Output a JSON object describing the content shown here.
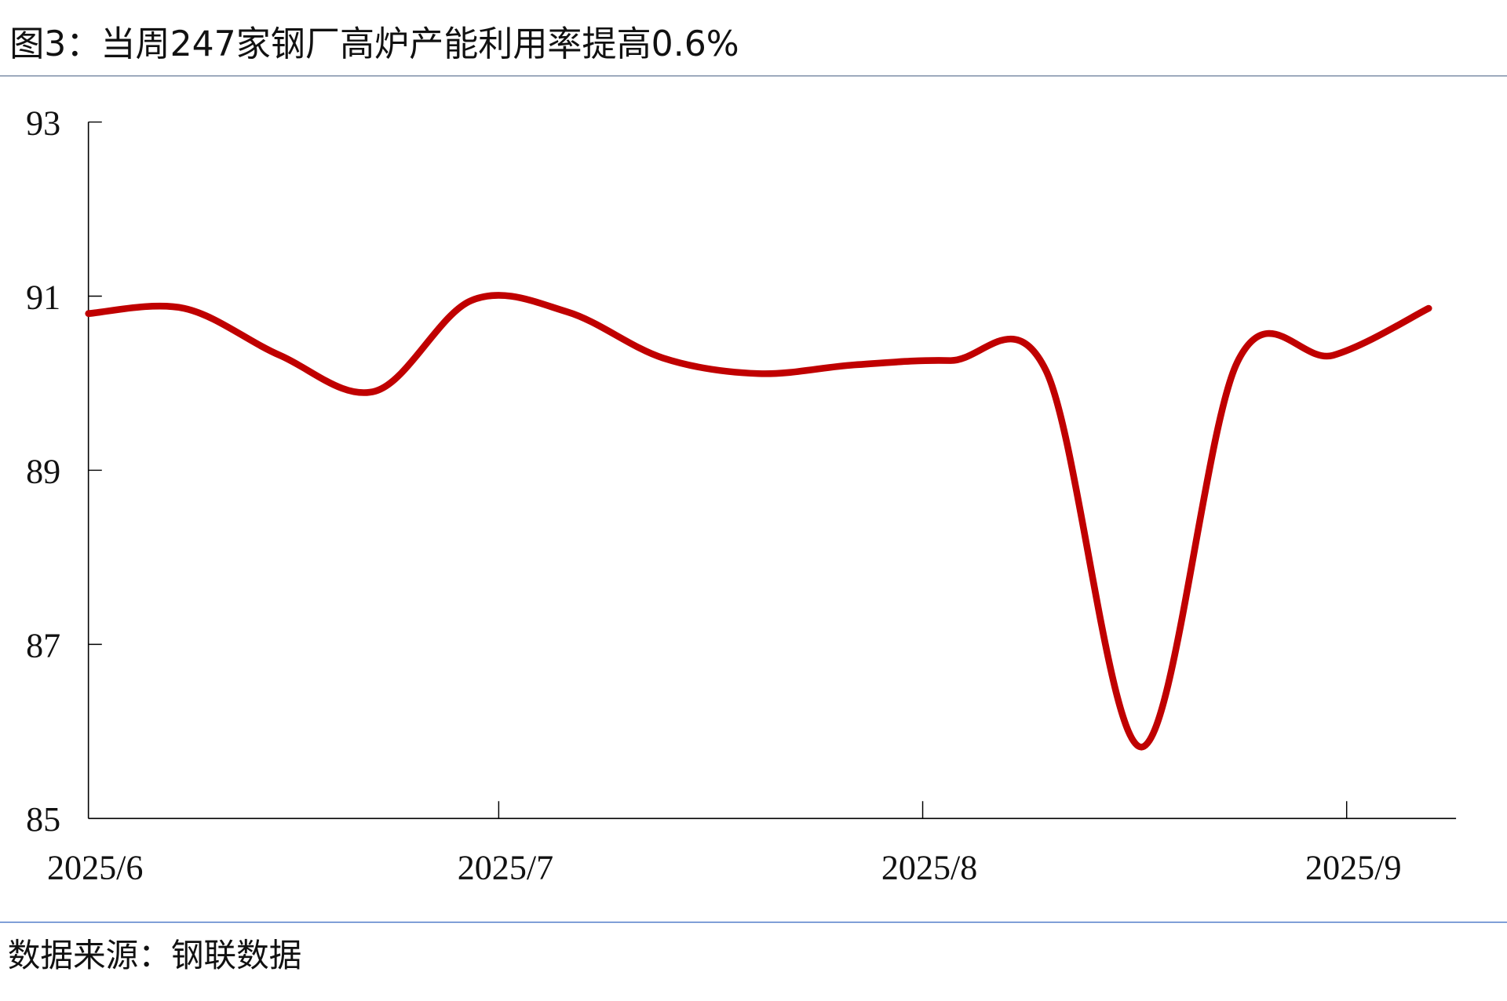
{
  "title": "图3：当周247家钢厂高炉产能利用率提高0.6%",
  "source": "数据来源：钢联数据",
  "colors": {
    "line": "#C00000",
    "rule": "#4472C4",
    "axis": "#000000"
  },
  "chart_data": {
    "type": "line",
    "title": "图3：当周247家钢厂高炉产能利用率提高0.6%",
    "xlabel": "",
    "ylabel": "",
    "ylim": [
      85,
      93
    ],
    "xlim": [
      "2025-06-01",
      "2025-09-09"
    ],
    "yticks": [
      "85",
      "87",
      "89",
      "91",
      "93"
    ],
    "xticks": [
      {
        "date": "2025-06-01",
        "label": "2025/6"
      },
      {
        "date": "2025-07-01",
        "label": "2025/7"
      },
      {
        "date": "2025-08-01",
        "label": "2025/8"
      },
      {
        "date": "2025-09-01",
        "label": "2025/9"
      }
    ],
    "grid": false,
    "smooth": true,
    "series": [
      {
        "x": [
          "2025-06-01",
          "2025-06-08",
          "2025-06-15",
          "2025-06-22",
          "2025-06-29",
          "2025-07-06",
          "2025-07-13",
          "2025-07-20",
          "2025-07-27",
          "2025-08-03",
          "2025-08-10",
          "2025-08-17",
          "2025-08-24",
          "2025-08-31",
          "2025-09-07"
        ],
        "values": [
          90.8,
          90.86,
          90.32,
          89.91,
          90.95,
          90.82,
          90.29,
          90.11,
          90.21,
          90.26,
          90.15,
          85.82,
          90.24,
          90.32,
          90.86
        ]
      }
    ]
  }
}
